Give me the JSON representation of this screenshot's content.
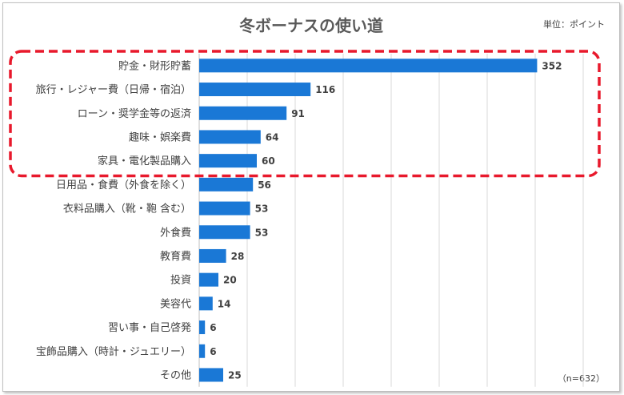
{
  "chart_data": {
    "type": "bar",
    "orientation": "horizontal",
    "title": "冬ボーナスの使い道",
    "unit_label": "単位：ポイント",
    "note": "（n=632）",
    "categories": [
      "貯金・財形貯蓄",
      "旅行・レジャー費（日帰・宿泊）",
      "ローン・奨学金等の返済",
      "趣味・娯楽費",
      "家具・電化製品購入",
      "日用品・食費（外食を除く）",
      "衣料品購入（靴・鞄 含む）",
      "外食費",
      "教育費",
      "投資",
      "美容代",
      "習い事・自己啓発",
      "宝飾品購入（時計・ジュエリー）",
      "その他"
    ],
    "values": [
      352,
      116,
      91,
      64,
      60,
      56,
      53,
      53,
      28,
      20,
      14,
      6,
      6,
      25
    ],
    "xlim": [
      0,
      400
    ],
    "grid": true,
    "highlight": {
      "from_index": 0,
      "to_index": 4,
      "style": "dashed-red-rounded-box"
    },
    "colors": {
      "bar": "#1a78d6",
      "highlight": "#e8192c",
      "grid": "#d9d9d9"
    }
  }
}
